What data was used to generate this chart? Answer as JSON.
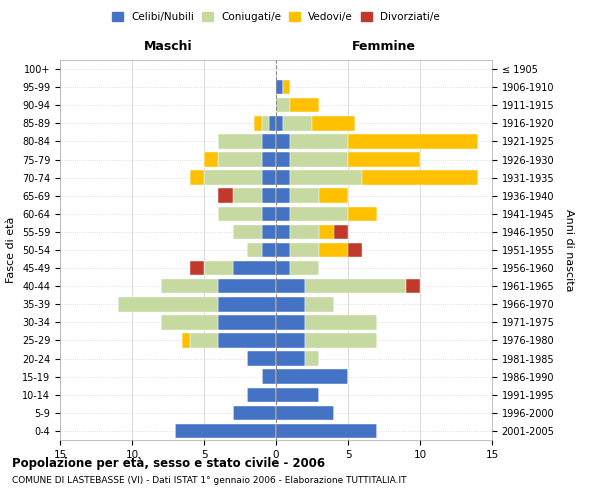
{
  "age_groups": [
    "0-4",
    "5-9",
    "10-14",
    "15-19",
    "20-24",
    "25-29",
    "30-34",
    "35-39",
    "40-44",
    "45-49",
    "50-54",
    "55-59",
    "60-64",
    "65-69",
    "70-74",
    "75-79",
    "80-84",
    "85-89",
    "90-94",
    "95-99",
    "100+"
  ],
  "birth_years": [
    "2001-2005",
    "1996-2000",
    "1991-1995",
    "1986-1990",
    "1981-1985",
    "1976-1980",
    "1971-1975",
    "1966-1970",
    "1961-1965",
    "1956-1960",
    "1951-1955",
    "1946-1950",
    "1941-1945",
    "1936-1940",
    "1931-1935",
    "1926-1930",
    "1921-1925",
    "1916-1920",
    "1911-1915",
    "1906-1910",
    "≤ 1905"
  ],
  "males": {
    "celibi": [
      7,
      3,
      2,
      1,
      2,
      4,
      4,
      4,
      4,
      3,
      1,
      1,
      1,
      1,
      1,
      1,
      1,
      0.5,
      0,
      0,
      0
    ],
    "coniugati": [
      0,
      0,
      0,
      0,
      0,
      2,
      4,
      7,
      4,
      2,
      1,
      2,
      3,
      2,
      4,
      3,
      3,
      0.5,
      0,
      0,
      0
    ],
    "vedovi": [
      0,
      0,
      0,
      0,
      0,
      0.5,
      0,
      0,
      0,
      0,
      0,
      0,
      0,
      0,
      1,
      1,
      0,
      0.5,
      0,
      0,
      0
    ],
    "divorziati": [
      0,
      0,
      0,
      0,
      0,
      0,
      0,
      0,
      0,
      1,
      0,
      0,
      0,
      1,
      0,
      0,
      0,
      0,
      0,
      0,
      0
    ]
  },
  "females": {
    "nubili": [
      7,
      4,
      3,
      5,
      2,
      2,
      2,
      2,
      2,
      1,
      1,
      1,
      1,
      1,
      1,
      1,
      1,
      0.5,
      0,
      0.5,
      0
    ],
    "coniugate": [
      0,
      0,
      0,
      0,
      1,
      5,
      5,
      2,
      7,
      2,
      2,
      2,
      4,
      2,
      5,
      4,
      4,
      2,
      1,
      0,
      0
    ],
    "vedove": [
      0,
      0,
      0,
      0,
      0,
      0,
      0,
      0,
      0,
      0,
      2,
      1,
      2,
      2,
      8,
      5,
      9,
      3,
      2,
      0.5,
      0
    ],
    "divorziate": [
      0,
      0,
      0,
      0,
      0,
      0,
      0,
      0,
      1,
      0,
      1,
      1,
      0,
      0,
      0,
      0,
      0,
      0,
      0,
      0,
      0
    ]
  },
  "colors": {
    "celibi": "#4472c4",
    "coniugati": "#c5d9a0",
    "vedovi": "#ffc000",
    "divorziati": "#c0392b"
  },
  "title": "Popolazione per età, sesso e stato civile - 2006",
  "subtitle": "COMUNE DI LASTEBASSE (VI) - Dati ISTAT 1° gennaio 2006 - Elaborazione TUTTITALIA.IT",
  "xlabel_left": "Maschi",
  "xlabel_right": "Femmine",
  "ylabel_left": "Fasce di età",
  "ylabel_right": "Anni di nascita",
  "legend_labels": [
    "Celibi/Nubili",
    "Coniugati/e",
    "Vedovi/e",
    "Divorziati/e"
  ],
  "xlim": 15,
  "bg_color": "#ffffff",
  "grid_color": "#cccccc"
}
